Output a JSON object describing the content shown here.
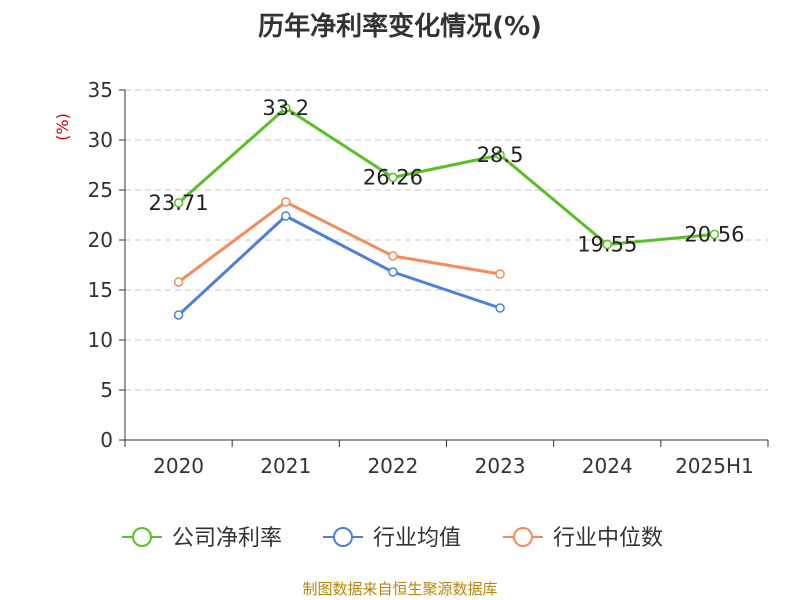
{
  "chart_data": {
    "type": "line",
    "title": "历年净利率变化情况(%)",
    "ylabel": "(%)",
    "xlabel": "",
    "categories": [
      "2020",
      "2021",
      "2022",
      "2023",
      "2024",
      "2025H1"
    ],
    "ylim": [
      0,
      35
    ],
    "yticks": [
      0,
      5,
      10,
      15,
      20,
      25,
      30,
      35
    ],
    "grid": "horizontal-dashed",
    "legend_position": "bottom",
    "series": [
      {
        "name": "公司净利率",
        "color": "#5bbf27",
        "values": [
          23.71,
          33.2,
          26.26,
          28.5,
          19.55,
          20.56
        ],
        "labels": [
          "23.71",
          "33.2",
          "26.26",
          "28.5",
          "19.55",
          "20.56"
        ]
      },
      {
        "name": "行业均值",
        "color": "#4f7fdc",
        "values": [
          12.5,
          22.4,
          16.8,
          13.2,
          null,
          null
        ]
      },
      {
        "name": "行业中位数",
        "color": "#f58b5a",
        "values": [
          15.8,
          23.8,
          18.4,
          16.6,
          null,
          null
        ]
      }
    ]
  },
  "source_text": "制图数据来自恒生聚源数据库"
}
